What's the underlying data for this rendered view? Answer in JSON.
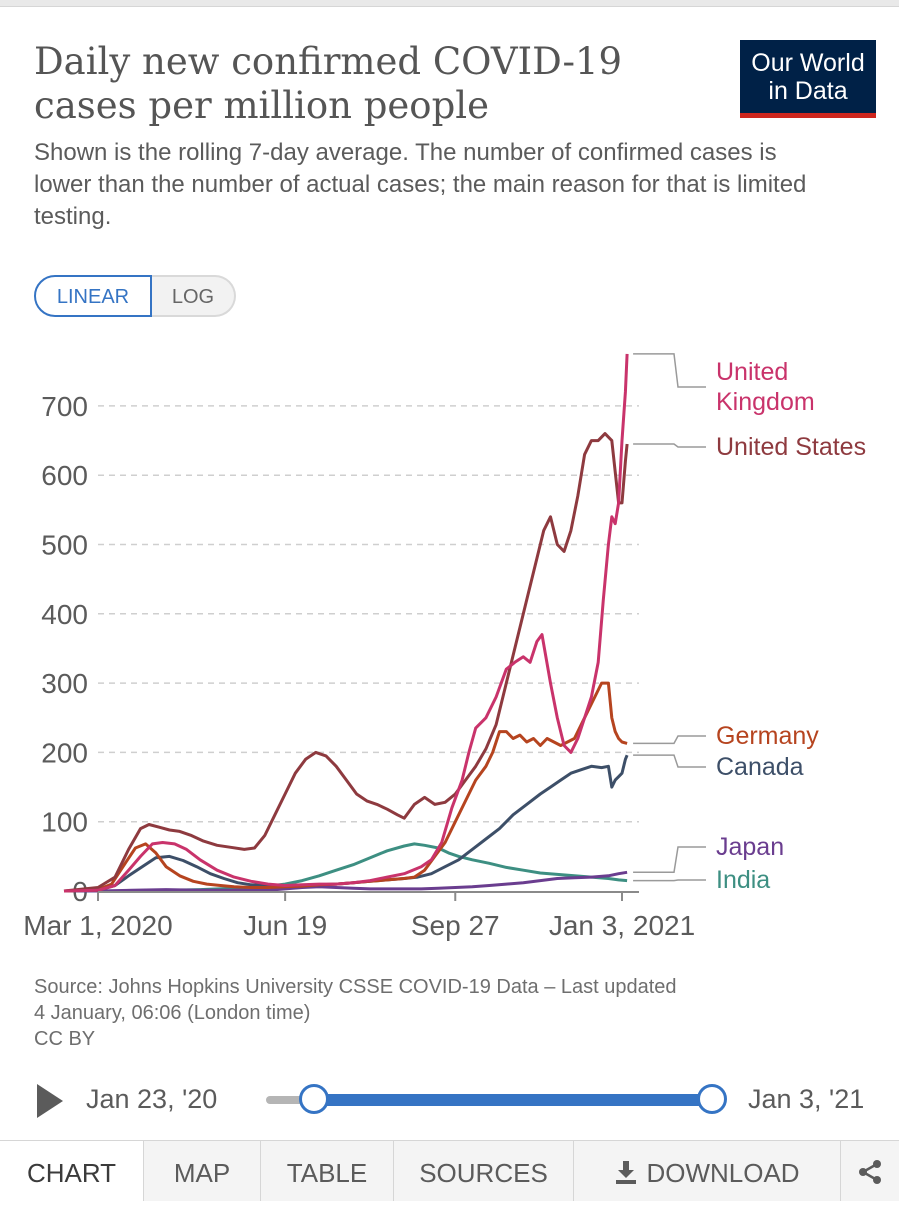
{
  "header": {
    "title": "Daily new confirmed COVID-19 cases per million people",
    "subtitle": "Shown is the rolling 7-day average. The number of confirmed cases is lower than the number of actual cases; the main reason for that is limited testing.",
    "logo_line1": "Our World",
    "logo_line2": "in Data"
  },
  "controls": {
    "linear_label": "LINEAR",
    "log_label": "LOG"
  },
  "chart_data": {
    "type": "line",
    "title": "Daily new confirmed COVID-19 cases per million people",
    "xlabel": "",
    "ylabel": "",
    "ylim": [
      0,
      780
    ],
    "yticks": [
      0,
      100,
      200,
      300,
      400,
      500,
      600,
      700
    ],
    "xlim": [
      0,
      318
    ],
    "x_unit": "days since Mar 1, 2020",
    "x_start_offset": -38,
    "xticks": [
      {
        "x": 0,
        "label": "Mar 1, 2020"
      },
      {
        "x": 110,
        "label": "Jun 19"
      },
      {
        "x": 210,
        "label": "Sep 27"
      },
      {
        "x": 308,
        "label": "Jan 3, 2021"
      }
    ],
    "grid": true,
    "series": [
      {
        "name": "United Kingdom",
        "label_lines": [
          "United",
          "Kingdom"
        ],
        "color": "#c9336b",
        "end_value": 775,
        "points": [
          [
            -20,
            0
          ],
          [
            0,
            1
          ],
          [
            10,
            8
          ],
          [
            18,
            30
          ],
          [
            25,
            50
          ],
          [
            32,
            68
          ],
          [
            38,
            70
          ],
          [
            45,
            68
          ],
          [
            52,
            60
          ],
          [
            60,
            45
          ],
          [
            70,
            30
          ],
          [
            80,
            20
          ],
          [
            90,
            14
          ],
          [
            100,
            10
          ],
          [
            110,
            8
          ],
          [
            120,
            9
          ],
          [
            130,
            10
          ],
          [
            140,
            10
          ],
          [
            150,
            12
          ],
          [
            160,
            15
          ],
          [
            170,
            20
          ],
          [
            180,
            25
          ],
          [
            190,
            35
          ],
          [
            196,
            45
          ],
          [
            202,
            70
          ],
          [
            208,
            120
          ],
          [
            214,
            160
          ],
          [
            218,
            200
          ],
          [
            222,
            235
          ],
          [
            228,
            250
          ],
          [
            234,
            280
          ],
          [
            240,
            320
          ],
          [
            245,
            330
          ],
          [
            250,
            338
          ],
          [
            254,
            330
          ],
          [
            258,
            360
          ],
          [
            261,
            370
          ],
          [
            266,
            300
          ],
          [
            270,
            250
          ],
          [
            274,
            210
          ],
          [
            278,
            200
          ],
          [
            282,
            220
          ],
          [
            286,
            250
          ],
          [
            290,
            280
          ],
          [
            294,
            330
          ],
          [
            297,
            420
          ],
          [
            300,
            500
          ],
          [
            302,
            540
          ],
          [
            304,
            530
          ],
          [
            306,
            560
          ],
          [
            308,
            650
          ],
          [
            310,
            720
          ],
          [
            311,
            775
          ]
        ]
      },
      {
        "name": "United States",
        "label_lines": [
          "United States"
        ],
        "color": "#8e3a3f",
        "end_value": 645,
        "points": [
          [
            -20,
            0
          ],
          [
            0,
            5
          ],
          [
            10,
            20
          ],
          [
            18,
            60
          ],
          [
            25,
            90
          ],
          [
            30,
            96
          ],
          [
            36,
            92
          ],
          [
            42,
            88
          ],
          [
            48,
            86
          ],
          [
            55,
            80
          ],
          [
            62,
            72
          ],
          [
            70,
            66
          ],
          [
            78,
            63
          ],
          [
            86,
            60
          ],
          [
            92,
            62
          ],
          [
            98,
            80
          ],
          [
            104,
            110
          ],
          [
            110,
            140
          ],
          [
            116,
            170
          ],
          [
            122,
            190
          ],
          [
            128,
            200
          ],
          [
            134,
            195
          ],
          [
            140,
            180
          ],
          [
            146,
            160
          ],
          [
            152,
            140
          ],
          [
            158,
            130
          ],
          [
            164,
            125
          ],
          [
            170,
            118
          ],
          [
            176,
            110
          ],
          [
            180,
            105
          ],
          [
            186,
            125
          ],
          [
            192,
            135
          ],
          [
            198,
            125
          ],
          [
            204,
            128
          ],
          [
            210,
            140
          ],
          [
            216,
            160
          ],
          [
            222,
            180
          ],
          [
            228,
            205
          ],
          [
            234,
            240
          ],
          [
            240,
            300
          ],
          [
            246,
            360
          ],
          [
            252,
            420
          ],
          [
            258,
            480
          ],
          [
            262,
            520
          ],
          [
            266,
            540
          ],
          [
            270,
            500
          ],
          [
            274,
            490
          ],
          [
            278,
            520
          ],
          [
            282,
            570
          ],
          [
            286,
            630
          ],
          [
            290,
            650
          ],
          [
            294,
            650
          ],
          [
            298,
            660
          ],
          [
            302,
            650
          ],
          [
            306,
            560
          ],
          [
            308,
            560
          ],
          [
            310,
            620
          ],
          [
            311,
            645
          ]
        ]
      },
      {
        "name": "Germany",
        "label_lines": [
          "Germany"
        ],
        "color": "#b6441f",
        "end_value": 213,
        "points": [
          [
            -20,
            0
          ],
          [
            0,
            2
          ],
          [
            8,
            10
          ],
          [
            16,
            40
          ],
          [
            22,
            62
          ],
          [
            28,
            68
          ],
          [
            34,
            55
          ],
          [
            40,
            35
          ],
          [
            48,
            22
          ],
          [
            56,
            14
          ],
          [
            64,
            10
          ],
          [
            72,
            8
          ],
          [
            80,
            6
          ],
          [
            90,
            5
          ],
          [
            100,
            5
          ],
          [
            110,
            6
          ],
          [
            120,
            7
          ],
          [
            130,
            9
          ],
          [
            140,
            10
          ],
          [
            150,
            12
          ],
          [
            160,
            14
          ],
          [
            170,
            16
          ],
          [
            180,
            18
          ],
          [
            186,
            20
          ],
          [
            192,
            30
          ],
          [
            198,
            50
          ],
          [
            204,
            70
          ],
          [
            210,
            100
          ],
          [
            216,
            130
          ],
          [
            222,
            160
          ],
          [
            228,
            180
          ],
          [
            232,
            200
          ],
          [
            236,
            230
          ],
          [
            240,
            230
          ],
          [
            244,
            220
          ],
          [
            248,
            225
          ],
          [
            252,
            215
          ],
          [
            256,
            220
          ],
          [
            260,
            210
          ],
          [
            264,
            220
          ],
          [
            268,
            215
          ],
          [
            272,
            210
          ],
          [
            276,
            215
          ],
          [
            280,
            220
          ],
          [
            284,
            240
          ],
          [
            288,
            260
          ],
          [
            292,
            280
          ],
          [
            296,
            300
          ],
          [
            300,
            300
          ],
          [
            302,
            250
          ],
          [
            304,
            230
          ],
          [
            306,
            220
          ],
          [
            308,
            215
          ],
          [
            311,
            213
          ]
        ]
      },
      {
        "name": "Canada",
        "label_lines": [
          "Canada"
        ],
        "color": "#3d4f68",
        "end_value": 196,
        "points": [
          [
            -20,
            0
          ],
          [
            0,
            1
          ],
          [
            10,
            8
          ],
          [
            18,
            22
          ],
          [
            26,
            35
          ],
          [
            34,
            48
          ],
          [
            42,
            50
          ],
          [
            50,
            44
          ],
          [
            58,
            35
          ],
          [
            66,
            25
          ],
          [
            74,
            18
          ],
          [
            82,
            12
          ],
          [
            90,
            9
          ],
          [
            100,
            8
          ],
          [
            110,
            7
          ],
          [
            120,
            8
          ],
          [
            130,
            9
          ],
          [
            140,
            10
          ],
          [
            150,
            12
          ],
          [
            160,
            14
          ],
          [
            170,
            16
          ],
          [
            180,
            18
          ],
          [
            188,
            20
          ],
          [
            196,
            25
          ],
          [
            204,
            35
          ],
          [
            212,
            45
          ],
          [
            220,
            60
          ],
          [
            228,
            75
          ],
          [
            236,
            90
          ],
          [
            244,
            110
          ],
          [
            252,
            125
          ],
          [
            260,
            140
          ],
          [
            266,
            150
          ],
          [
            272,
            160
          ],
          [
            278,
            170
          ],
          [
            284,
            175
          ],
          [
            290,
            180
          ],
          [
            296,
            178
          ],
          [
            300,
            180
          ],
          [
            302,
            150
          ],
          [
            304,
            160
          ],
          [
            306,
            165
          ],
          [
            308,
            170
          ],
          [
            310,
            190
          ],
          [
            311,
            196
          ]
        ]
      },
      {
        "name": "India",
        "label_lines": [
          "India"
        ],
        "color": "#3d8f82",
        "end_value": 15,
        "points": [
          [
            -20,
            0
          ],
          [
            0,
            0
          ],
          [
            20,
            0
          ],
          [
            40,
            1
          ],
          [
            60,
            2
          ],
          [
            80,
            4
          ],
          [
            100,
            7
          ],
          [
            110,
            10
          ],
          [
            120,
            15
          ],
          [
            130,
            22
          ],
          [
            140,
            30
          ],
          [
            150,
            38
          ],
          [
            160,
            48
          ],
          [
            170,
            58
          ],
          [
            180,
            65
          ],
          [
            186,
            68
          ],
          [
            192,
            66
          ],
          [
            200,
            62
          ],
          [
            206,
            55
          ],
          [
            212,
            50
          ],
          [
            220,
            45
          ],
          [
            230,
            40
          ],
          [
            240,
            34
          ],
          [
            250,
            30
          ],
          [
            260,
            26
          ],
          [
            270,
            24
          ],
          [
            280,
            22
          ],
          [
            290,
            20
          ],
          [
            300,
            18
          ],
          [
            306,
            16
          ],
          [
            311,
            15
          ]
        ]
      },
      {
        "name": "Japan",
        "label_lines": [
          "Japan"
        ],
        "color": "#6a3d8f",
        "end_value": 27,
        "points": [
          [
            -20,
            0
          ],
          [
            0,
            0
          ],
          [
            20,
            1
          ],
          [
            40,
            2
          ],
          [
            60,
            1
          ],
          [
            80,
            1
          ],
          [
            100,
            1
          ],
          [
            110,
            3
          ],
          [
            120,
            5
          ],
          [
            130,
            6
          ],
          [
            140,
            5
          ],
          [
            150,
            4
          ],
          [
            160,
            3
          ],
          [
            170,
            3
          ],
          [
            180,
            3
          ],
          [
            190,
            3
          ],
          [
            200,
            4
          ],
          [
            210,
            5
          ],
          [
            220,
            6
          ],
          [
            230,
            8
          ],
          [
            240,
            10
          ],
          [
            250,
            12
          ],
          [
            260,
            15
          ],
          [
            270,
            18
          ],
          [
            280,
            19
          ],
          [
            290,
            20
          ],
          [
            300,
            22
          ],
          [
            306,
            25
          ],
          [
            311,
            27
          ]
        ]
      }
    ]
  },
  "footer": {
    "source_line1": "Source: Johns Hopkins University CSSE COVID-19 Data – Last updated",
    "source_line2": "4 January, 06:06 (London time)",
    "license": "CC BY"
  },
  "timeline": {
    "start_label": "Jan 23, '20",
    "end_label": "Jan 3, '21",
    "range_start_fraction": 0.0,
    "range_end_fraction": 1.0
  },
  "tabs": {
    "chart": "CHART",
    "map": "MAP",
    "table": "TABLE",
    "sources": "SOURCES",
    "download": "DOWNLOAD"
  }
}
